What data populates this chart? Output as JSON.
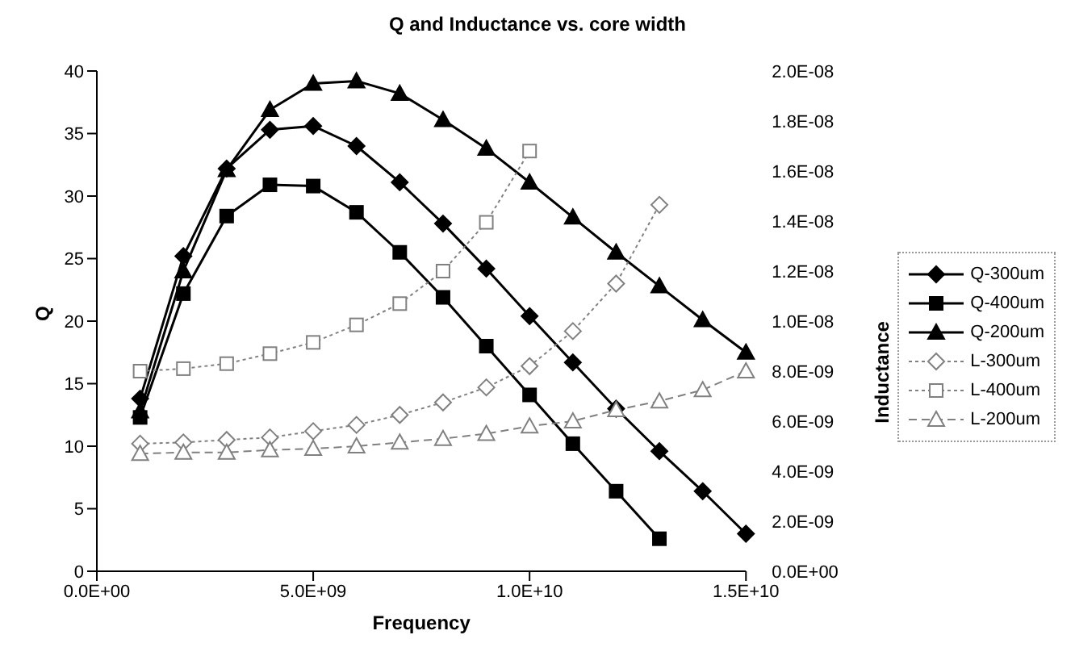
{
  "chart_data": {
    "type": "line",
    "title": "Q and Inductance vs. core width",
    "xlabel": "Frequency",
    "ylabel": "Q",
    "y2label": "Inductance",
    "x": [
      1000000000.0,
      2000000000.0,
      3000000000.0,
      4000000000.0,
      5000000000.0,
      6000000000.0,
      7000000000.0,
      8000000000.0,
      9000000000.0,
      10000000000.0,
      11000000000.0,
      12000000000.0,
      13000000000.0,
      14000000000.0,
      15000000000.0
    ],
    "series": [
      {
        "name": "Q-300um",
        "color": "#000000",
        "marker": "diamond",
        "line_style": "solid",
        "values": [
          13.8,
          25.2,
          32.2,
          35.3,
          35.6,
          34.0,
          31.1,
          27.8,
          24.2,
          20.4,
          16.7,
          13.0,
          9.6,
          6.4,
          3.0
        ]
      },
      {
        "name": "Q-400um",
        "color": "#000000",
        "marker": "square",
        "line_style": "solid",
        "values": [
          12.3,
          22.2,
          28.4,
          30.9,
          30.8,
          28.7,
          25.5,
          21.9,
          18.0,
          14.1,
          10.2,
          6.4,
          2.6,
          null,
          null
        ]
      },
      {
        "name": "Q-200um",
        "color": "#000000",
        "marker": "triangle",
        "line_style": "solid",
        "values": [
          12.8,
          24.0,
          32.1,
          36.9,
          39.0,
          39.2,
          38.2,
          36.1,
          33.8,
          31.1,
          28.3,
          25.5,
          22.8,
          20.1,
          17.5
        ]
      },
      {
        "name": "L-300um",
        "color": "#808080",
        "marker": "diamond",
        "line_style": "dotted",
        "axis": "y2",
        "values": [
          5.1e-09,
          5.15e-09,
          5.25e-09,
          5.35e-09,
          5.6e-09,
          5.85e-09,
          6.25e-09,
          6.75e-09,
          7.35e-09,
          8.2e-09,
          9.6e-09,
          1.15e-08,
          1.465e-08,
          null,
          null
        ]
      },
      {
        "name": "L-400um",
        "color": "#808080",
        "marker": "square",
        "line_style": "dotted",
        "axis": "y2",
        "values": [
          8e-09,
          8.1e-09,
          8.3e-09,
          8.7e-09,
          9.15e-09,
          9.85e-09,
          1.07e-08,
          1.2e-08,
          1.395e-08,
          1.68e-08,
          null,
          null,
          null,
          null,
          null
        ]
      },
      {
        "name": "L-200um",
        "color": "#808080",
        "marker": "triangle",
        "line_style": "dashed",
        "axis": "y2",
        "values": [
          4.7e-09,
          4.75e-09,
          4.75e-09,
          4.85e-09,
          4.9e-09,
          5e-09,
          5.15e-09,
          5.3e-09,
          5.5e-09,
          5.8e-09,
          6e-09,
          6.45e-09,
          6.8e-09,
          7.25e-09,
          8e-09
        ]
      }
    ],
    "xlim": [
      0,
      15000000000.0
    ],
    "xticks": [
      {
        "value": 0,
        "label": "0.0E+00"
      },
      {
        "value": 5000000000.0,
        "label": "5.0E+09"
      },
      {
        "value": 10000000000.0,
        "label": "1.0E+10"
      },
      {
        "value": 15000000000.0,
        "label": "1.5E+10"
      }
    ],
    "ylim": [
      0,
      40
    ],
    "yticks": [
      0,
      5,
      10,
      15,
      20,
      25,
      30,
      35,
      40
    ],
    "y2lim": [
      0,
      2e-08
    ],
    "y2ticks": [
      {
        "value": 0,
        "label": "0.0E+00"
      },
      {
        "value": 2e-09,
        "label": "2.0E-09"
      },
      {
        "value": 4e-09,
        "label": "4.0E-09"
      },
      {
        "value": 6e-09,
        "label": "6.0E-09"
      },
      {
        "value": 8e-09,
        "label": "8.0E-09"
      },
      {
        "value": 1e-08,
        "label": "1.0E-08"
      },
      {
        "value": 1.2e-08,
        "label": "1.2E-08"
      },
      {
        "value": 1.4e-08,
        "label": "1.4E-08"
      },
      {
        "value": 1.6e-08,
        "label": "1.6E-08"
      },
      {
        "value": 1.8e-08,
        "label": "1.8E-08"
      },
      {
        "value": 2e-08,
        "label": "2.0E-08"
      }
    ],
    "grid": false,
    "legend": "right"
  }
}
